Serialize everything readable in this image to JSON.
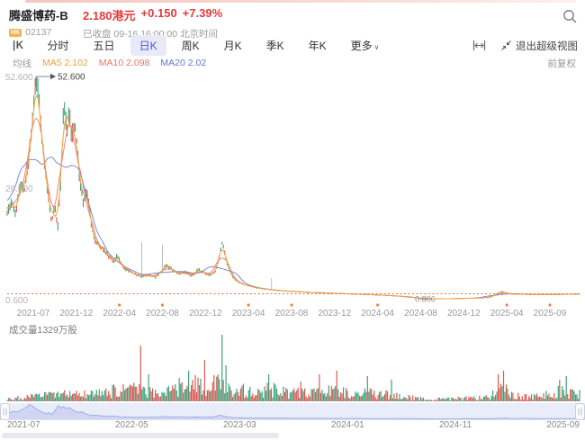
{
  "header": {
    "title": "腾盛博药-B",
    "price": "2.180港元",
    "change": "+0.150",
    "change_pct": "+7.39%",
    "market_badge": "HK",
    "code": "02137",
    "status": "已收盘 09-16 16:00:00 北京时间"
  },
  "toolbar": {
    "kline_icon_label": "|K",
    "tabs": [
      {
        "key": "minute",
        "label": "分时",
        "active": false
      },
      {
        "key": "five-day",
        "label": "五日",
        "active": false
      },
      {
        "key": "day-k",
        "label": "日K",
        "active": true
      },
      {
        "key": "week-k",
        "label": "周K",
        "active": false
      },
      {
        "key": "month-k",
        "label": "月K",
        "active": false
      },
      {
        "key": "quarter-k",
        "label": "季K",
        "active": false
      },
      {
        "key": "year-k",
        "label": "年K",
        "active": false
      },
      {
        "key": "more",
        "label": "更多",
        "active": false,
        "caret": true
      }
    ],
    "exit_super_view": "退出超级视图"
  },
  "indicators": {
    "group_label": "均线",
    "items": [
      {
        "label": "MA5",
        "value": "2.102",
        "color": "#f0a23c"
      },
      {
        "label": "MA10",
        "value": "2.098",
        "color": "#e8766b"
      },
      {
        "label": "MA20",
        "value": "2.02",
        "color": "#6474d8"
      }
    ],
    "adjust_label": "前复权"
  },
  "chart_data": {
    "type": "candlestick+volume",
    "title": "腾盛博药-B 日K",
    "y_axis": {
      "max": 52.6,
      "min": 0.6,
      "labels": [
        "52.600",
        "26.600",
        "0.600"
      ]
    },
    "annotations": {
      "max_label": "52.600",
      "max_price": 52.6,
      "min_label": "0.806",
      "min_price": 0.806,
      "current_price": 2.18
    },
    "x_labels": [
      {
        "label": "2021-07",
        "dot": false
      },
      {
        "label": "2021-12",
        "dot": false
      },
      {
        "label": "2022-04",
        "dot": true
      },
      {
        "label": "2022-08",
        "dot": true
      },
      {
        "label": "2022-12",
        "dot": false
      },
      {
        "label": "2023-04",
        "dot": true
      },
      {
        "label": "2023-08",
        "dot": true
      },
      {
        "label": "2023-12",
        "dot": false
      },
      {
        "label": "2024-04",
        "dot": true
      },
      {
        "label": "2024-08",
        "dot": false
      },
      {
        "label": "2024-12",
        "dot": false
      },
      {
        "label": "2025-04",
        "dot": true
      },
      {
        "label": "2025-09",
        "dot": true
      }
    ],
    "price_anchors": [
      [
        0,
        21
      ],
      [
        0.008,
        24
      ],
      [
        0.015,
        20
      ],
      [
        0.022,
        28
      ],
      [
        0.03,
        26
      ],
      [
        0.038,
        34
      ],
      [
        0.046,
        44
      ],
      [
        0.0503,
        52.6
      ],
      [
        0.056,
        46
      ],
      [
        0.062,
        36
      ],
      [
        0.07,
        27
      ],
      [
        0.078,
        19
      ],
      [
        0.083,
        23
      ],
      [
        0.088,
        17
      ],
      [
        0.094,
        30
      ],
      [
        0.0995,
        48
      ],
      [
        0.104,
        40
      ],
      [
        0.108,
        45
      ],
      [
        0.113,
        38
      ],
      [
        0.118,
        42
      ],
      [
        0.126,
        30
      ],
      [
        0.133,
        24
      ],
      [
        0.14,
        26
      ],
      [
        0.147,
        18
      ],
      [
        0.155,
        14
      ],
      [
        0.165,
        13
      ],
      [
        0.175,
        11.5
      ],
      [
        0.185,
        9.5
      ],
      [
        0.192,
        11
      ],
      [
        0.205,
        8
      ],
      [
        0.22,
        7
      ],
      [
        0.232,
        6.2
      ],
      [
        0.245,
        6.6
      ],
      [
        0.26,
        6
      ],
      [
        0.27,
        7.4
      ],
      [
        0.278,
        8.8
      ],
      [
        0.29,
        7.6
      ],
      [
        0.3,
        6.8
      ],
      [
        0.31,
        7.2
      ],
      [
        0.322,
        6.4
      ],
      [
        0.335,
        7.8
      ],
      [
        0.345,
        7
      ],
      [
        0.355,
        6.6
      ],
      [
        0.365,
        7.6
      ],
      [
        0.3758,
        14
      ],
      [
        0.384,
        9.5
      ],
      [
        0.392,
        6.5
      ],
      [
        0.4,
        5.2
      ],
      [
        0.412,
        4.4
      ],
      [
        0.425,
        3.9
      ],
      [
        0.44,
        3.5
      ],
      [
        0.455,
        3.2
      ],
      [
        0.47,
        3
      ],
      [
        0.49,
        2.8
      ],
      [
        0.51,
        2.65
      ],
      [
        0.53,
        2.5
      ],
      [
        0.55,
        2.4
      ],
      [
        0.57,
        2.3
      ],
      [
        0.59,
        2.2
      ],
      [
        0.61,
        2.1
      ],
      [
        0.63,
        2
      ],
      [
        0.65,
        1.9
      ],
      [
        0.67,
        1.75
      ],
      [
        0.69,
        1.6
      ],
      [
        0.705,
        1.45
      ],
      [
        0.715,
        1.25
      ],
      [
        0.727,
        0.85
      ],
      [
        0.74,
        1
      ],
      [
        0.755,
        1.05
      ],
      [
        0.77,
        1
      ],
      [
        0.785,
        1.05
      ],
      [
        0.8,
        1.1
      ],
      [
        0.815,
        1.15
      ],
      [
        0.83,
        1.2
      ],
      [
        0.845,
        1.35
      ],
      [
        0.858,
        2.4
      ],
      [
        0.865,
        2.75
      ],
      [
        0.872,
        2.3
      ],
      [
        0.885,
        2.05
      ],
      [
        0.9,
        2.1
      ],
      [
        0.915,
        1.95
      ],
      [
        0.93,
        2
      ],
      [
        0.945,
        2.05
      ],
      [
        0.96,
        2
      ],
      [
        0.975,
        2.05
      ],
      [
        0.99,
        2.1
      ],
      [
        1,
        2.18
      ]
    ],
    "price_spikes": [
      [
        0.235,
        14.2
      ],
      [
        0.271,
        13.6
      ],
      [
        0.462,
        5.8
      ]
    ],
    "volume": {
      "label": "成交量1329万股",
      "base_anchors": [
        [
          0,
          3
        ],
        [
          0.04,
          5
        ],
        [
          0.07,
          7
        ],
        [
          0.1,
          9
        ],
        [
          0.13,
          7
        ],
        [
          0.16,
          9
        ],
        [
          0.19,
          13
        ],
        [
          0.21,
          11
        ],
        [
          0.225,
          14
        ],
        [
          0.24,
          10
        ],
        [
          0.27,
          9
        ],
        [
          0.3,
          14
        ],
        [
          0.33,
          20
        ],
        [
          0.355,
          16
        ],
        [
          0.37,
          24
        ],
        [
          0.385,
          22
        ],
        [
          0.4,
          14
        ],
        [
          0.43,
          10
        ],
        [
          0.46,
          13
        ],
        [
          0.49,
          10
        ],
        [
          0.52,
          9
        ],
        [
          0.55,
          11
        ],
        [
          0.575,
          12
        ],
        [
          0.6,
          8
        ],
        [
          0.63,
          9
        ],
        [
          0.66,
          8
        ],
        [
          0.69,
          5
        ],
        [
          0.72,
          3.5
        ],
        [
          0.75,
          2.5
        ],
        [
          0.78,
          3
        ],
        [
          0.81,
          3.5
        ],
        [
          0.84,
          5
        ],
        [
          0.862,
          16
        ],
        [
          0.88,
          8
        ],
        [
          0.9,
          5
        ],
        [
          0.92,
          6
        ],
        [
          0.95,
          8
        ],
        [
          0.97,
          12
        ],
        [
          0.985,
          10
        ],
        [
          1,
          8
        ]
      ],
      "spikes": [
        [
          0.232,
          62,
          "r"
        ],
        [
          0.246,
          30,
          "g"
        ],
        [
          0.3,
          26,
          "g"
        ],
        [
          0.316,
          34,
          "g"
        ],
        [
          0.344,
          46,
          "r"
        ],
        [
          0.3758,
          74,
          "g"
        ],
        [
          0.383,
          40,
          "g"
        ],
        [
          0.458,
          30,
          "g"
        ],
        [
          0.513,
          22,
          "r"
        ],
        [
          0.545,
          30,
          "r"
        ],
        [
          0.575,
          34,
          "r"
        ],
        [
          0.63,
          28,
          "g"
        ],
        [
          0.672,
          24,
          "g"
        ],
        [
          0.858,
          30,
          "r"
        ],
        [
          0.868,
          34,
          "r"
        ],
        [
          0.965,
          24,
          "r"
        ],
        [
          0.976,
          28,
          "g"
        ]
      ]
    },
    "navigator": {
      "dates": [
        "2021-07",
        "2022-05",
        "2023-03",
        "2024-01",
        "2024-11",
        "2025-09"
      ]
    },
    "colors": {
      "up": "#d85a52",
      "down": "#3da27e",
      "ma5": "#f0a23c",
      "ma10": "#e8766b",
      "ma20": "#6474d8",
      "dotted": "#e2714d",
      "dot": "#e0874f",
      "nav_fill": "#ccd3f1",
      "nav_stroke": "#98a3e0",
      "nav_bg": "#e9ecf9"
    }
  }
}
